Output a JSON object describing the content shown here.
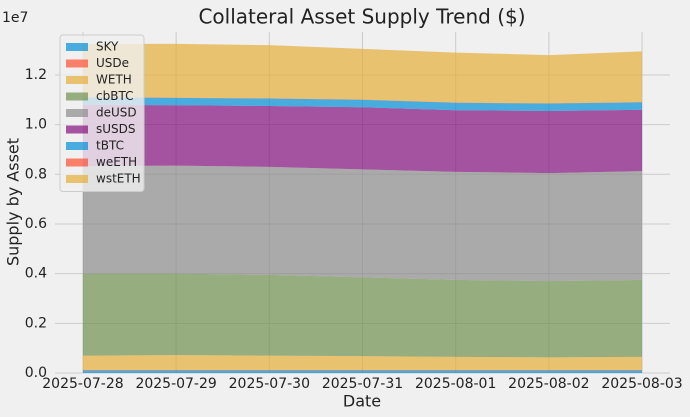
{
  "chart_data": {
    "type": "stacked-area",
    "title": "Collateral Asset Supply Trend ($)",
    "x_label": "Date",
    "y_label": "Supply by Asset",
    "y_offset_label": "1e7",
    "x": [
      "2025-07-28",
      "2025-07-29",
      "2025-07-30",
      "2025-07-31",
      "2025-08-01",
      "2025-08-02",
      "2025-08-03"
    ],
    "series": [
      {
        "name": "SKY",
        "color": "#008fd5",
        "values": [
          0.01,
          0.01,
          0.01,
          0.01,
          0.01,
          0.01,
          0.01
        ]
      },
      {
        "name": "USDe",
        "color": "#fc4f30",
        "values": [
          0.002,
          0.002,
          0.002,
          0.002,
          0.002,
          0.002,
          0.002
        ]
      },
      {
        "name": "WETH",
        "color": "#e5ae38",
        "values": [
          0.058,
          0.06,
          0.058,
          0.056,
          0.053,
          0.051,
          0.053
        ]
      },
      {
        "name": "cbBTC",
        "color": "#6d904f",
        "values": [
          0.33,
          0.328,
          0.325,
          0.317,
          0.31,
          0.307,
          0.31
        ]
      },
      {
        "name": "deUSD",
        "color": "#8b8b8b",
        "values": [
          0.433,
          0.435,
          0.435,
          0.435,
          0.435,
          0.435,
          0.438
        ]
      },
      {
        "name": "sUSDS",
        "color": "#810f7c",
        "values": [
          0.247,
          0.243,
          0.245,
          0.25,
          0.248,
          0.25,
          0.247
        ]
      },
      {
        "name": "tBTC",
        "color": "#008fd5",
        "values": [
          0.03,
          0.03,
          0.03,
          0.03,
          0.03,
          0.03,
          0.03
        ]
      },
      {
        "name": "weETH",
        "color": "#fc4f30",
        "values": [
          0.001,
          0.001,
          0.001,
          0.001,
          0.001,
          0.001,
          0.001
        ]
      },
      {
        "name": "wstETH",
        "color": "#e5ae38",
        "values": [
          0.214,
          0.216,
          0.214,
          0.204,
          0.201,
          0.194,
          0.204
        ]
      }
    ],
    "ylim": [
      0,
      1.373
    ],
    "yticks": [
      {
        "value": 0,
        "label": "0.0"
      },
      0.2,
      0.4,
      0.6,
      0.8,
      {
        "value": 1,
        "label": "1.0"
      },
      1.2
    ],
    "grid": true,
    "legend": "upper left",
    "alpha": 0.7
  }
}
